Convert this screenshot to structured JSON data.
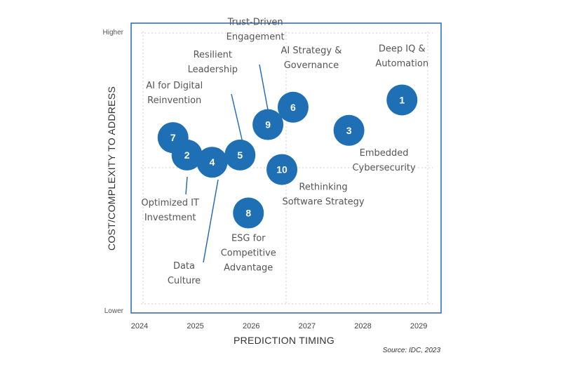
{
  "chart_data": {
    "type": "scatter",
    "xlabel": "PREDICTION TIMING",
    "ylabel": "COST/COMPLEXITY TO ADDRESS",
    "x_ticks": [
      "2024",
      "2025",
      "2026",
      "2027",
      "2028",
      "2029"
    ],
    "xlim": [
      2023.85,
      2029.4
    ],
    "ylim": [
      0,
      10
    ],
    "y_high_label": "Higher",
    "y_low_label": "Lower",
    "grid": true,
    "source": "Source: IDC, 2023",
    "colors": {
      "bubble": "#1f6fb5",
      "frame": "#2a66a8",
      "leader": "#2a6fb5"
    },
    "points": [
      {
        "id": "1",
        "x": 2028.7,
        "y": 7.35,
        "label": [
          "Deep IQ &",
          "Automation"
        ]
      },
      {
        "id": "2",
        "x": 2024.85,
        "y": 5.45,
        "label": [
          "Optimized IT",
          "Investment"
        ]
      },
      {
        "id": "3",
        "x": 2027.75,
        "y": 6.3,
        "label": [
          "Embedded",
          "Cybersecurity"
        ]
      },
      {
        "id": "4",
        "x": 2025.3,
        "y": 5.2,
        "label": [
          "Data",
          "Culture"
        ]
      },
      {
        "id": "5",
        "x": 2025.8,
        "y": 5.45,
        "label": [
          "Resilient",
          "Leadership"
        ]
      },
      {
        "id": "6",
        "x": 2026.75,
        "y": 7.1,
        "label": [
          "AI Strategy &",
          "Governance"
        ]
      },
      {
        "id": "7",
        "x": 2024.6,
        "y": 6.05,
        "label": [
          "AI for Digital",
          "Reinvention"
        ]
      },
      {
        "id": "8",
        "x": 2025.95,
        "y": 3.45,
        "label": [
          "ESG for",
          "Competitive",
          "Advantage"
        ]
      },
      {
        "id": "9",
        "x": 2026.3,
        "y": 6.5,
        "label": [
          "Trust-Driven",
          "Engagement"
        ]
      },
      {
        "id": "10",
        "x": 2026.55,
        "y": 4.95,
        "label": [
          "Rethinking",
          "Software Strategy"
        ]
      }
    ]
  }
}
